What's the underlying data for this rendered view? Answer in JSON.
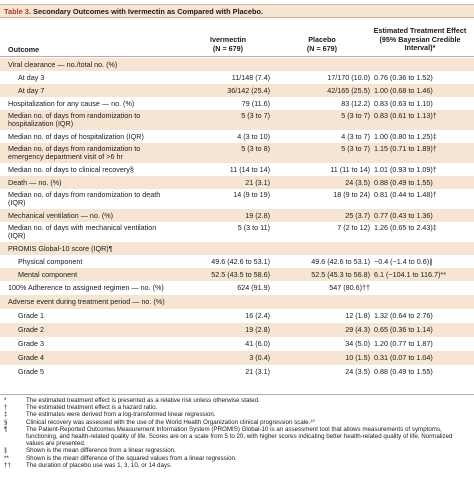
{
  "title": {
    "label": "Table 3.",
    "text": "Secondary Outcomes with Ivermectin as Compared with Placebo."
  },
  "headers": {
    "outcome": "Outcome",
    "ivermectin": "Ivermectin\n(N = 679)",
    "placebo": "Placebo\n(N = 679)",
    "effect": "Estimated Treatment Effect\n(95% Bayesian Credible\nInterval)*"
  },
  "rows": [
    {
      "outcome": "Viral clearance — no./total no. (%)",
      "ivermectin": "",
      "placebo": "",
      "effect": "",
      "indent": false,
      "shade": true
    },
    {
      "outcome": "At day 3",
      "ivermectin": "11/148 (7.4)",
      "placebo": "17/170 (10.0)",
      "effect": "0.76 (0.36 to 1.52)",
      "indent": true,
      "shade": false
    },
    {
      "outcome": "At day 7",
      "ivermectin": "36/142 (25.4)",
      "placebo": "42/165 (25.5)",
      "effect": "1.00 (0.68 to 1.46)",
      "indent": true,
      "shade": true
    },
    {
      "outcome": "Hospitalization for any cause — no. (%)",
      "ivermectin": "79 (11.6)",
      "placebo": "83 (12.2)",
      "effect": "0.83 (0.63 to 1.10)",
      "indent": false,
      "shade": false
    },
    {
      "outcome": "Median no. of days from randomization to\nhospitalization (IQR)",
      "ivermectin": "5 (3 to 7)",
      "placebo": "5 (3 to 7)",
      "effect": "0.83 (0.61 to 1.13)†",
      "indent": false,
      "shade": true
    },
    {
      "outcome": "Median no. of days of hospitalization (IQR)",
      "ivermectin": "4 (3 to 10)",
      "placebo": "4 (3 to 7)",
      "effect": "1.00 (0.80 to 1.25)‡",
      "indent": false,
      "shade": false
    },
    {
      "outcome": "Median no. of days from randomization to\nemergency department visit of >6 hr",
      "ivermectin": "5 (3 to 8)",
      "placebo": "5 (3 to 7)",
      "effect": "1.15 (0.71 to 1.89)†",
      "indent": false,
      "shade": true
    },
    {
      "outcome": "Median no. of days to clinical recovery§",
      "ivermectin": "11 (14 to 14)",
      "placebo": "11 (11 to 14)",
      "effect": "1.01 (0.93 to 1.09)†",
      "indent": false,
      "shade": false
    },
    {
      "outcome": "Death — no. (%)",
      "ivermectin": "21 (3.1)",
      "placebo": "24 (3.5)",
      "effect": "0.88 (0.49 to 1.55)",
      "indent": false,
      "shade": true
    },
    {
      "outcome": "Median no. of days from randomization to death\n(IQR)",
      "ivermectin": "14 (9 to 19)",
      "placebo": "18 (9 to 24)",
      "effect": "0.81 (0.44 to 1.48)†",
      "indent": false,
      "shade": false
    },
    {
      "outcome": "Mechanical ventilation — no. (%)",
      "ivermectin": "19 (2.8)",
      "placebo": "25 (3.7)",
      "effect": "0.77 (0.43 to 1.36)",
      "indent": false,
      "shade": true
    },
    {
      "outcome": "Median no. of days with mechanical ventilation\n(IQR)",
      "ivermectin": "5 (3 to 11)",
      "placebo": "7 (2 to 12)",
      "effect": "1.26 (0.65 to 2.43)‡",
      "indent": false,
      "shade": false
    },
    {
      "outcome": "PROMIS Global-10 score (IQR)¶",
      "ivermectin": "",
      "placebo": "",
      "effect": "",
      "indent": false,
      "shade": true
    },
    {
      "outcome": "Physical component",
      "ivermectin": "49.6 (42.6 to 53.1)",
      "placebo": "49.6 (42.6 to 53.1)",
      "effect": "−0.4 (−1.4 to 0.6)∥",
      "indent": true,
      "shade": false
    },
    {
      "outcome": "Mental component",
      "ivermectin": "52.5 (43.5 to 58.6)",
      "placebo": "52.5 (45.3 to 56.8)",
      "effect": "6.1 (−104.1 to 116.7)**",
      "indent": true,
      "shade": true
    },
    {
      "outcome": "100% Adherence to assigned regimen — no. (%)",
      "ivermectin": "624 (91.9)",
      "placebo": "547 (80.6)††",
      "effect": "",
      "indent": false,
      "shade": false
    },
    {
      "outcome": "Adverse event during treatment period — no. (%)",
      "ivermectin": "",
      "placebo": "",
      "effect": "",
      "indent": false,
      "shade": true
    },
    {
      "outcome": "Grade 1",
      "ivermectin": "16 (2.4)",
      "placebo": "12 (1.8)",
      "effect": "1.32 (0.64 to 2.76)",
      "indent": true,
      "shade": false
    },
    {
      "outcome": "Grade 2",
      "ivermectin": "19 (2.8)",
      "placebo": "29 (4.3)",
      "effect": "0.65 (0.36 to 1.14)",
      "indent": true,
      "shade": true
    },
    {
      "outcome": "Grade 3",
      "ivermectin": "41 (6.0)",
      "placebo": "34 (5.0)",
      "effect": "1.20 (0.77 to 1.87)",
      "indent": true,
      "shade": false
    },
    {
      "outcome": "Grade 4",
      "ivermectin": "3 (0.4)",
      "placebo": "10 (1.5)",
      "effect": "0.31 (0.07 to 1.04)",
      "indent": true,
      "shade": true
    },
    {
      "outcome": "Grade 5",
      "ivermectin": "21 (3.1)",
      "placebo": "24 (3.5)",
      "effect": "0.88 (0.49 to 1.55)",
      "indent": true,
      "shade": false
    }
  ],
  "footnotes": [
    {
      "sym": "*",
      "text": "The estimated treatment effect is presented as a relative risk unless otherwise stated."
    },
    {
      "sym": "†",
      "text": "The estimated treatment effect is a hazard ratio."
    },
    {
      "sym": "‡",
      "text": "The estimates were derived from a log-transformed linear regression."
    },
    {
      "sym": "§",
      "text": "Clinical recovery was assessed with the use of the World Health Organization clinical progression scale.¹⁰"
    },
    {
      "sym": "¶",
      "text": "The Patient-Reported Outcomes Measurement Information System (PROMIS) Global-10 is an assessment tool that allows measurements of symptoms, functioning, and health-related quality of life. Scores are on a scale from 5 to 20, with higher scores indicating better health-related quality of life. Normalized values are presented."
    },
    {
      "sym": "∥",
      "text": "Shown is the mean difference from a linear regression."
    },
    {
      "sym": "**",
      "text": "Shown is the mean difference of the squared values from a linear regression."
    },
    {
      "sym": "††",
      "text": "The duration of placebo use was 1, 3, 10, or 14 days."
    }
  ]
}
